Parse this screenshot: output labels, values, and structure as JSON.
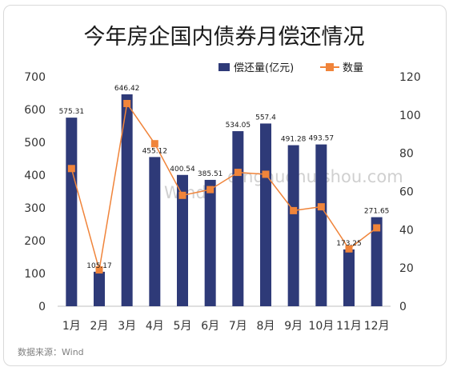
{
  "chart_data": {
    "type": "bar+line",
    "title": "今年房企国内债券月偿还情况",
    "categories": [
      "1月",
      "2月",
      "3月",
      "4月",
      "5月",
      "6月",
      "7月",
      "8月",
      "9月",
      "10月",
      "11月",
      "12月"
    ],
    "series": [
      {
        "name": "偿还量(亿元)",
        "type": "bar",
        "axis": "left",
        "values": [
          575.31,
          105.17,
          646.42,
          455.12,
          400.54,
          385.51,
          534.05,
          557.4,
          491.28,
          493.57,
          173.25,
          271.65
        ],
        "labels": [
          "575.31",
          "105.17",
          "646.42",
          "455.12",
          "400.54",
          "385.51",
          "534.05",
          "557.4",
          "491.28",
          "493.57",
          "173.25",
          "271.65"
        ]
      },
      {
        "name": "数量",
        "type": "line",
        "axis": "right",
        "values": [
          72,
          19,
          106,
          85,
          58,
          61,
          70,
          69,
          50,
          52,
          30,
          41
        ]
      }
    ],
    "ylim_left": [
      0,
      700
    ],
    "yticks_left": [
      "0",
      "100",
      "200",
      "300",
      "400",
      "500",
      "600",
      "700"
    ],
    "ylim_right": [
      0,
      120
    ],
    "yticks_right": [
      "0",
      "20",
      "40",
      "60",
      "80",
      "100",
      "120"
    ],
    "legend_position": "top-right",
    "grid": false,
    "colors": {
      "bar": "#2e3a78",
      "line": "#f0843a"
    }
  },
  "source": "数据来源：Wind",
  "watermarks": [
    "Wind",
    "dingnuohuishou.com"
  ]
}
